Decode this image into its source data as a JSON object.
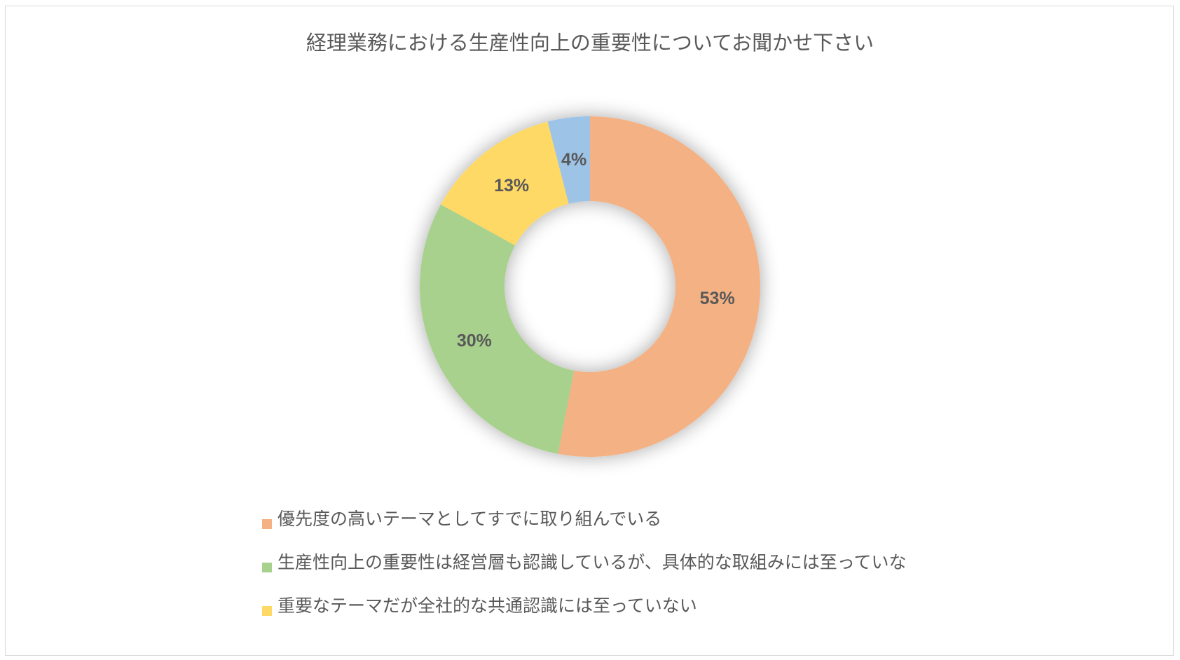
{
  "chart_data": {
    "type": "pie",
    "variant": "doughnut",
    "title": "経理業務における生産性向上の重要性についてお聞かせ下さい",
    "categories": [
      "優先度の高いテーマとしてすでに取り組んでいる",
      "生産性向上の重要性は経営層も認識しているが、具体的な取組みには至っていない",
      "重要なテーマだが全社的な共通認識には至っていない",
      ""
    ],
    "values": [
      53,
      30,
      13,
      4
    ],
    "data_labels": [
      "53%",
      "30%",
      "13%",
      "4%"
    ],
    "colors": [
      "#F4B183",
      "#A9D18E",
      "#FFD966",
      "#9DC3E6"
    ],
    "legend_placement": "bottom"
  },
  "legend": [
    {
      "label": "優先度の高いテーマとしてすでに取り組んでいる",
      "color": "#F4B183"
    },
    {
      "label": "生産性向上の重要性は経営層も認識しているが、具体的な取組みには至っていな",
      "color": "#A9D18E"
    },
    {
      "label": "重要なテーマだが全社的な共通認識には至っていない",
      "color": "#FFD966"
    }
  ]
}
